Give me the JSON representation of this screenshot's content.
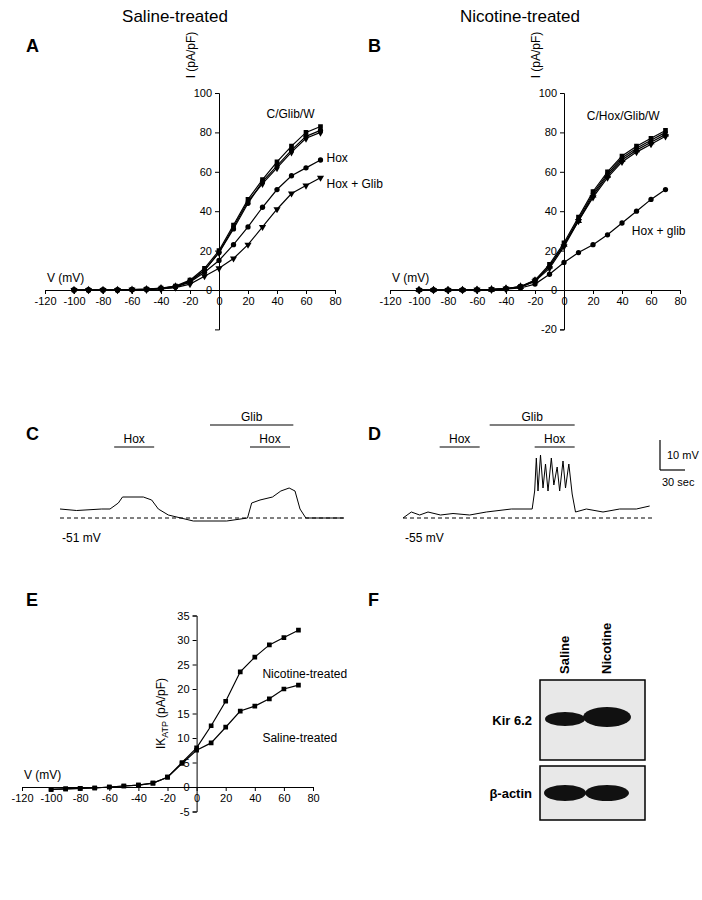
{
  "headers": [
    "Saline-treated",
    "Nicotine-treated"
  ],
  "chart_data": [
    {
      "panel": "A",
      "type": "line",
      "x_label": "V (mV)",
      "y_label": "I (pA/pF)",
      "x": [
        -100,
        -90,
        -80,
        -70,
        -60,
        -50,
        -40,
        -30,
        -20,
        -10,
        0,
        10,
        20,
        30,
        40,
        50,
        60,
        70
      ],
      "xlim": [
        -120,
        80
      ],
      "xticks": [
        -120,
        -100,
        -80,
        -60,
        -40,
        -20,
        0,
        20,
        40,
        60,
        80
      ],
      "ylim": [
        -20,
        100
      ],
      "yticks": [
        0,
        20,
        40,
        60,
        80,
        100
      ],
      "series": [
        {
          "name": "C/Glib/W",
          "color": "#000000",
          "marker": "square",
          "values": [
            0,
            0,
            0,
            0,
            0.2,
            0.5,
            1,
            2,
            5,
            11,
            20,
            33,
            46,
            56,
            65,
            73,
            80,
            83
          ]
        },
        {
          "color": "#000000",
          "marker": "circle",
          "values": [
            0,
            0,
            0,
            0,
            0.2,
            0.4,
            0.9,
            1.8,
            4.6,
            10,
            19,
            31,
            44,
            55,
            63,
            71,
            78,
            81
          ]
        },
        {
          "color": "#000000",
          "marker": "diamond",
          "values": [
            0,
            0,
            0,
            0,
            0.1,
            0.3,
            0.8,
            1.7,
            4.5,
            10,
            19,
            32,
            45,
            54,
            62,
            70,
            77,
            80
          ]
        },
        {
          "name": "Hox",
          "color": "#000000",
          "marker": "circle",
          "values": [
            0,
            0,
            0,
            0,
            0.1,
            0.3,
            0.6,
            1.5,
            4,
            9,
            15,
            23,
            32,
            42,
            51,
            58,
            62,
            66
          ]
        },
        {
          "name": "Hox + Glib",
          "color": "#000000",
          "marker": "triangle-down",
          "values": [
            0,
            0,
            0,
            0,
            0.1,
            0.2,
            0.5,
            1.2,
            3,
            7,
            11,
            16,
            23,
            32,
            41,
            49,
            53,
            57
          ]
        }
      ]
    },
    {
      "panel": "B",
      "type": "line",
      "x_label": "V (mV)",
      "y_label": "I (pA/pF)",
      "x": [
        -100,
        -90,
        -80,
        -70,
        -60,
        -50,
        -40,
        -30,
        -20,
        -10,
        0,
        10,
        20,
        30,
        40,
        50,
        60,
        70
      ],
      "xlim": [
        -120,
        80
      ],
      "xticks": [
        -120,
        -100,
        -80,
        -60,
        -40,
        -20,
        0,
        20,
        40,
        60,
        80
      ],
      "ylim": [
        -20,
        100
      ],
      "yticks": [
        -20,
        0,
        20,
        40,
        60,
        80,
        100
      ],
      "series": [
        {
          "name": "C/Hox/Glib/W",
          "color": "#000000",
          "marker": "square",
          "values": [
            0,
            0,
            0,
            0,
            0.1,
            0.3,
            0.7,
            1.8,
            5,
            13,
            24,
            37,
            50,
            60,
            68,
            73,
            77,
            81
          ]
        },
        {
          "color": "#000000",
          "marker": "diamond",
          "values": [
            0,
            0,
            0,
            0,
            0.1,
            0.3,
            0.7,
            1.7,
            4.8,
            12,
            23,
            36,
            49,
            59,
            67,
            72,
            76,
            80
          ]
        },
        {
          "color": "#000000",
          "marker": "triangle-up",
          "values": [
            0,
            0,
            0,
            0,
            0.1,
            0.2,
            0.6,
            1.6,
            4.5,
            12,
            23,
            35,
            48,
            58,
            66,
            71,
            75,
            79
          ]
        },
        {
          "color": "#000000",
          "marker": "triangle-down",
          "values": [
            0,
            0,
            0,
            0,
            0.1,
            0.2,
            0.6,
            1.5,
            4.4,
            11,
            22,
            35,
            47,
            57,
            65,
            70,
            74,
            78
          ]
        },
        {
          "name": "Hox + glib",
          "color": "#000000",
          "marker": "circle",
          "values": [
            0,
            0,
            0,
            0,
            0.1,
            0.2,
            0.5,
            1,
            3,
            8,
            14,
            19,
            23,
            28,
            34,
            40,
            46,
            51
          ]
        }
      ]
    },
    {
      "panel": "C",
      "type": "line",
      "tick_labels": false,
      "x": [
        0,
        20,
        50,
        60,
        70,
        75,
        100,
        110,
        118,
        130,
        160,
        200,
        225,
        230,
        240,
        255,
        265,
        275,
        282,
        288,
        295,
        340
      ],
      "xlim": [
        0,
        342
      ],
      "ylim": [
        -61,
        -20
      ],
      "series": [
        {
          "color": "#000000",
          "marker": "none",
          "values": [
            -48,
            -48.5,
            -48,
            -48,
            -46,
            -44,
            -44,
            -45,
            -48,
            -50,
            -52,
            -52,
            -51,
            -46,
            -45,
            -44,
            -42,
            -41,
            -42,
            -48,
            -51,
            -51
          ]
        }
      ],
      "baseline": {
        "value": -51,
        "label": "-51 mV"
      },
      "treatments": [
        {
          "label": "Hox",
          "x": [
            65,
            113
          ]
        },
        {
          "label": "Glib",
          "x": [
            180,
            280
          ]
        },
        {
          "label": "Hox",
          "x": [
            228,
            276
          ]
        }
      ]
    },
    {
      "panel": "D",
      "type": "line",
      "tick_labels": false,
      "x": [
        0,
        10,
        20,
        30,
        45,
        60,
        80,
        100,
        130,
        155,
        158,
        160,
        162,
        165,
        168,
        171,
        174,
        178,
        181,
        185,
        188,
        192,
        195,
        199,
        203,
        207,
        220,
        240,
        260,
        280,
        296
      ],
      "xlim": [
        0,
        300
      ],
      "ylim": [
        -65,
        -24
      ],
      "series": [
        {
          "color": "#000000",
          "marker": "none",
          "values": [
            -55,
            -53,
            -54,
            -53,
            -54,
            -53.5,
            -54,
            -53,
            -52,
            -52,
            -46,
            -35,
            -46,
            -34,
            -45,
            -37,
            -46,
            -35,
            -44,
            -38,
            -46,
            -36,
            -45,
            -37,
            -47,
            -53,
            -52,
            -53,
            -52,
            -52,
            -51
          ]
        }
      ],
      "baseline": {
        "value": -55,
        "label": "-55 mV"
      },
      "treatments": [
        {
          "label": "Hox",
          "x": [
            44,
            92
          ]
        },
        {
          "label": "Glib",
          "x": [
            104,
            206
          ]
        },
        {
          "label": "Hox",
          "x": [
            158,
            206
          ]
        }
      ],
      "scale_bar": {
        "y": 10,
        "y_label": "10 mV",
        "x": 30,
        "x_label": "30 sec"
      }
    },
    {
      "panel": "E",
      "type": "line",
      "x_label": "V (mV)",
      "y_label": {
        "main": "IK",
        "sub": "ATP",
        "unit": "(pA/pF)"
      },
      "x": [
        -100,
        -90,
        -80,
        -70,
        -60,
        -50,
        -40,
        -30,
        -20,
        -10,
        0,
        10,
        20,
        30,
        40,
        50,
        60,
        70
      ],
      "xlim": [
        -120,
        80
      ],
      "xticks": [
        -120,
        -100,
        -80,
        -60,
        -40,
        -20,
        0,
        20,
        40,
        60,
        80
      ],
      "ylim": [
        -5,
        35
      ],
      "yticks": [
        -5,
        0,
        5,
        10,
        15,
        20,
        25,
        30,
        35
      ],
      "series": [
        {
          "name": "Nicotine-treated",
          "color": "#000000",
          "marker": "square",
          "values": [
            -0.5,
            -0.4,
            -0.3,
            -0.2,
            0,
            0.2,
            0.4,
            0.8,
            2,
            5,
            8,
            12.5,
            17.5,
            23.5,
            26.5,
            29,
            30.5,
            32
          ]
        },
        {
          "name": "Saline-treated",
          "color": "#000000",
          "marker": "square",
          "values": [
            -0.5,
            -0.4,
            -0.3,
            -0.2,
            0,
            0.2,
            0.4,
            0.8,
            2,
            4.8,
            7.5,
            9,
            12.2,
            15.5,
            16.5,
            18,
            20,
            20.8
          ]
        }
      ]
    }
  ],
  "blot": {
    "panel": "F",
    "lanes": [
      "Saline",
      "Nicotine"
    ],
    "rows": [
      "Kir 6.2",
      "β-actin"
    ]
  }
}
